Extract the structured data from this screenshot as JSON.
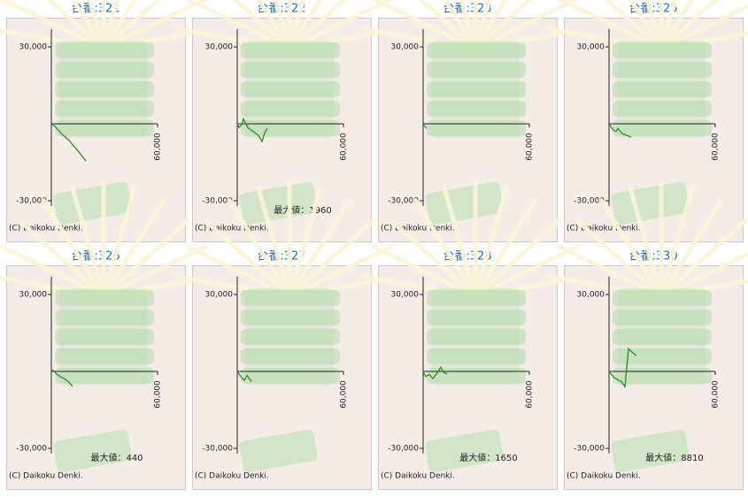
{
  "chart_data": [
    {
      "type": "line",
      "title": "台番:321",
      "footer": "(C) Daikoku Denki.",
      "series": [
        {
          "color": "#2e8b1e",
          "x": [
            0,
            2000,
            6000,
            10000,
            15000,
            19500
          ],
          "values": [
            0,
            -1000,
            -4000,
            -6500,
            -10500,
            -14500
          ]
        }
      ],
      "xlim": [
        0,
        60000
      ],
      "ylim": [
        -32000,
        37000
      ],
      "xticks": [
        {
          "value": 60000,
          "label": "60,000"
        }
      ],
      "yticks": [
        {
          "value": 30000,
          "label": "30,000"
        },
        {
          "value": -30000,
          "label": "-30,000"
        }
      ]
    },
    {
      "type": "line",
      "title": "台番:322",
      "footer": "(C) Daikoku Denki.",
      "annotation": "最大値：1960",
      "series": [
        {
          "color": "#2e8b1e",
          "x": [
            0,
            1000,
            2500,
            3500,
            6000,
            9000,
            12000,
            14000,
            15500,
            17000
          ],
          "values": [
            0,
            -1500,
            -300,
            1960,
            -1500,
            -3000,
            -4500,
            -6900,
            -3500,
            -1800
          ]
        }
      ],
      "xlim": [
        0,
        60000
      ],
      "ylim": [
        -32000,
        37000
      ],
      "xticks": [
        {
          "value": 60000,
          "label": "60,000"
        }
      ],
      "yticks": [
        {
          "value": 30000,
          "label": "30,000"
        },
        {
          "value": -30000,
          "label": "-30,000"
        }
      ]
    },
    {
      "type": "line",
      "title": "台番:323",
      "footer": "(C) Daikoku Denki.",
      "series": [
        {
          "color": "#2e8b1e",
          "x": [
            0,
            1000,
            2000
          ],
          "values": [
            0,
            -1000,
            -1800
          ]
        }
      ],
      "xlim": [
        0,
        60000
      ],
      "ylim": [
        -32000,
        37000
      ],
      "xticks": [
        {
          "value": 60000,
          "label": "60,000"
        }
      ],
      "yticks": [
        {
          "value": 30000,
          "label": "30,000"
        },
        {
          "value": -30000,
          "label": "-30,000"
        }
      ]
    },
    {
      "type": "line",
      "title": "台番:325",
      "footer": "(C) Daikoku Denki.",
      "series": [
        {
          "color": "#2e8b1e",
          "x": [
            0,
            2500,
            4000,
            5000,
            7500,
            10000,
            12500
          ],
          "values": [
            0,
            -2500,
            -3000,
            -1800,
            -3800,
            -4500,
            -5200
          ]
        }
      ],
      "xlim": [
        0,
        60000
      ],
      "ylim": [
        -32000,
        37000
      ],
      "xticks": [
        {
          "value": 60000,
          "label": "60,000"
        }
      ],
      "yticks": [
        {
          "value": 30000,
          "label": "30,000"
        },
        {
          "value": -30000,
          "label": "-30,000"
        }
      ]
    },
    {
      "type": "line",
      "title": "台番:326",
      "footer": "(C) Daikoku Denki.",
      "annotation": "最大値：440",
      "series": [
        {
          "color": "#2e8b1e",
          "x": [
            0,
            1000,
            3000,
            5000,
            7000,
            9000,
            10500,
            12000
          ],
          "values": [
            0,
            440,
            -1000,
            -2000,
            -2700,
            -3600,
            -4700,
            -5900
          ]
        }
      ],
      "xlim": [
        0,
        60000
      ],
      "ylim": [
        -32000,
        37000
      ],
      "xticks": [
        {
          "value": 60000,
          "label": "60,000"
        }
      ],
      "yticks": [
        {
          "value": 30000,
          "label": "30,000"
        },
        {
          "value": -30000,
          "label": "-30,000"
        }
      ]
    },
    {
      "type": "line",
      "title": "台番:327",
      "footer": "(C) Daikoku Denki.",
      "series": [
        {
          "color": "#2e8b1e",
          "x": [
            0,
            2000,
            4000,
            5500,
            8000
          ],
          "values": [
            0,
            -2000,
            -3500,
            -1500,
            -4000
          ]
        }
      ],
      "xlim": [
        0,
        60000
      ],
      "ylim": [
        -32000,
        37000
      ],
      "xticks": [
        {
          "value": 60000,
          "label": "60,000"
        }
      ],
      "yticks": [
        {
          "value": 30000,
          "label": "30,000"
        },
        {
          "value": -30000,
          "label": "-30,000"
        }
      ]
    },
    {
      "type": "line",
      "title": "台番:328",
      "footer": "(C) Daikoku Denki.",
      "annotation": "最大値：1650",
      "series": [
        {
          "color": "#2e8b1e",
          "x": [
            0,
            1500,
            3500,
            5500,
            8000,
            10000,
            11500,
            13500
          ],
          "values": [
            0,
            -2000,
            -1200,
            -2800,
            -500,
            1650,
            -300,
            -1000
          ]
        }
      ],
      "xlim": [
        0,
        60000
      ],
      "ylim": [
        -32000,
        37000
      ],
      "xticks": [
        {
          "value": 60000,
          "label": "60,000"
        }
      ],
      "yticks": [
        {
          "value": 30000,
          "label": "30,000"
        },
        {
          "value": -30000,
          "label": "-30,000"
        }
      ]
    },
    {
      "type": "line",
      "title": "台番:330",
      "footer": "(C) Daikoku Denki.",
      "annotation": "最大値：8810",
      "series": [
        {
          "color": "#2e8b1e",
          "x": [
            0,
            3000,
            7000,
            9000,
            10000,
            11000,
            13000,
            15500
          ],
          "values": [
            0,
            -2500,
            -4000,
            -6000,
            1500,
            8810,
            7500,
            6200
          ]
        }
      ],
      "xlim": [
        0,
        60000
      ],
      "ylim": [
        -32000,
        37000
      ],
      "xticks": [
        {
          "value": 60000,
          "label": "60,000"
        }
      ],
      "yticks": [
        {
          "value": 30000,
          "label": "30,000"
        },
        {
          "value": -30000,
          "label": "-30,000"
        }
      ]
    }
  ]
}
